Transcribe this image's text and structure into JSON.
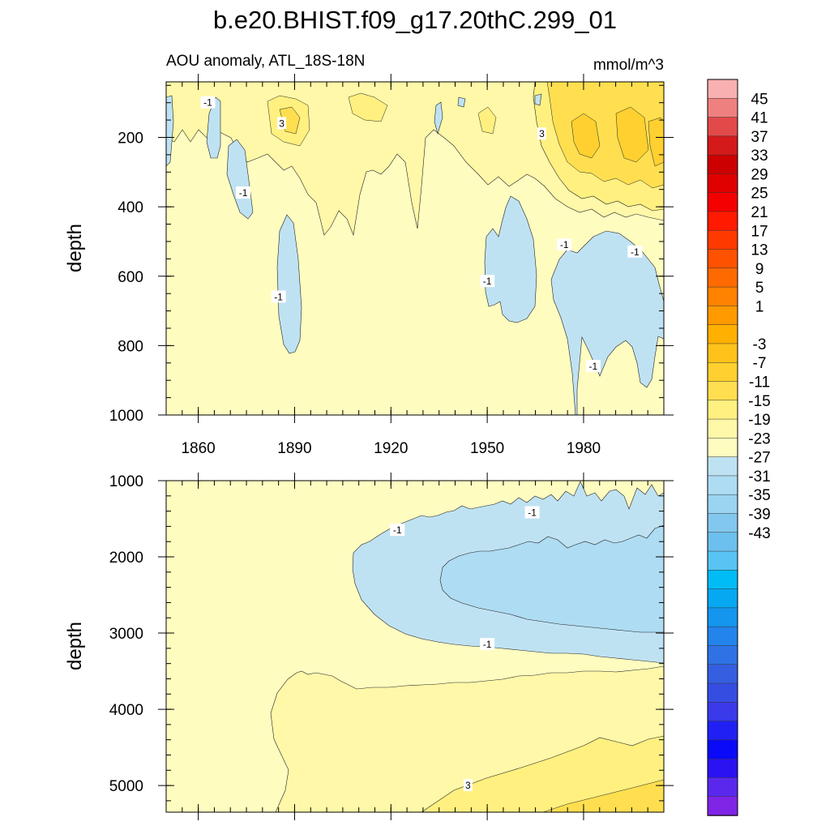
{
  "chart_data": {
    "type": "contour",
    "title": "b.e20.BHIST.f09_g17.20thC.299_01",
    "variable": "AOU anomaly, ATL_18S-18N",
    "units": "mmol/m^3",
    "x": {
      "range": [
        1850,
        2005
      ],
      "major_ticks": [
        1860,
        1890,
        1920,
        1950,
        1980
      ],
      "minor_step": 5
    },
    "panels": [
      {
        "name": "upper-ocean",
        "ylabel": "depth",
        "yrange": [
          40,
          1000
        ],
        "major_ticks": [
          200,
          400,
          600,
          800,
          1000
        ],
        "minor_step": 50,
        "contour_labels": [
          {
            "text": "-1",
            "x": 1863,
            "y": 100
          },
          {
            "text": "3",
            "x": 1886,
            "y": 160
          },
          {
            "text": "-1",
            "x": 1874,
            "y": 360
          },
          {
            "text": "3",
            "x": 1967,
            "y": 190
          },
          {
            "text": "-1",
            "x": 1885,
            "y": 660
          },
          {
            "text": "-1",
            "x": 1950,
            "y": 615
          },
          {
            "text": "-1",
            "x": 1974,
            "y": 510
          },
          {
            "text": "-1",
            "x": 1996,
            "y": 530
          },
          {
            "text": "-1",
            "x": 1983,
            "y": 860
          }
        ]
      },
      {
        "name": "deep-ocean",
        "ylabel": "depth",
        "yrange": [
          1000,
          5350
        ],
        "major_ticks": [
          1000,
          2000,
          3000,
          4000,
          5000
        ],
        "minor_step": 200,
        "contour_labels": [
          {
            "text": "-1",
            "x": 1922,
            "y": 1650
          },
          {
            "text": "-1",
            "x": 1964,
            "y": 1420
          },
          {
            "text": "-1",
            "x": 1950,
            "y": 3150
          },
          {
            "text": "3",
            "x": 1944,
            "y": 5000
          }
        ]
      }
    ],
    "colorbar": {
      "labels": [
        "45",
        "41",
        "37",
        "33",
        "29",
        "25",
        "21",
        "17",
        "13",
        "9",
        "5",
        "1",
        "-3",
        "-7",
        "-11",
        "-15",
        "-19",
        "-23",
        "-27",
        "-31",
        "-35",
        "-39",
        "-43"
      ],
      "colors": [
        "#f9b0b0",
        "#ef8080",
        "#e24a4a",
        "#d41a1a",
        "#cc0000",
        "#e00000",
        "#f40000",
        "#ff1a00",
        "#ff3a00",
        "#ff5200",
        "#ff6a00",
        "#ff8200",
        "#ff9a00",
        "#ffb000",
        "#ffc21a",
        "#ffd030",
        "#ffdf50",
        "#fff080",
        "#fff8a8",
        "#fffcc0",
        "#bfe2f3",
        "#aedcf2",
        "#9ad4f0",
        "#82c8ee",
        "#6cc0ee",
        "#58c4f4",
        "#00bcf6",
        "#06a8f2",
        "#1496ef",
        "#2384ec",
        "#2e72e6",
        "#355fe0",
        "#364de2",
        "#3a3aea",
        "#2020f4",
        "#0a0af8",
        "#2a12f2",
        "#5a28ec",
        "#8024e6"
      ]
    }
  }
}
